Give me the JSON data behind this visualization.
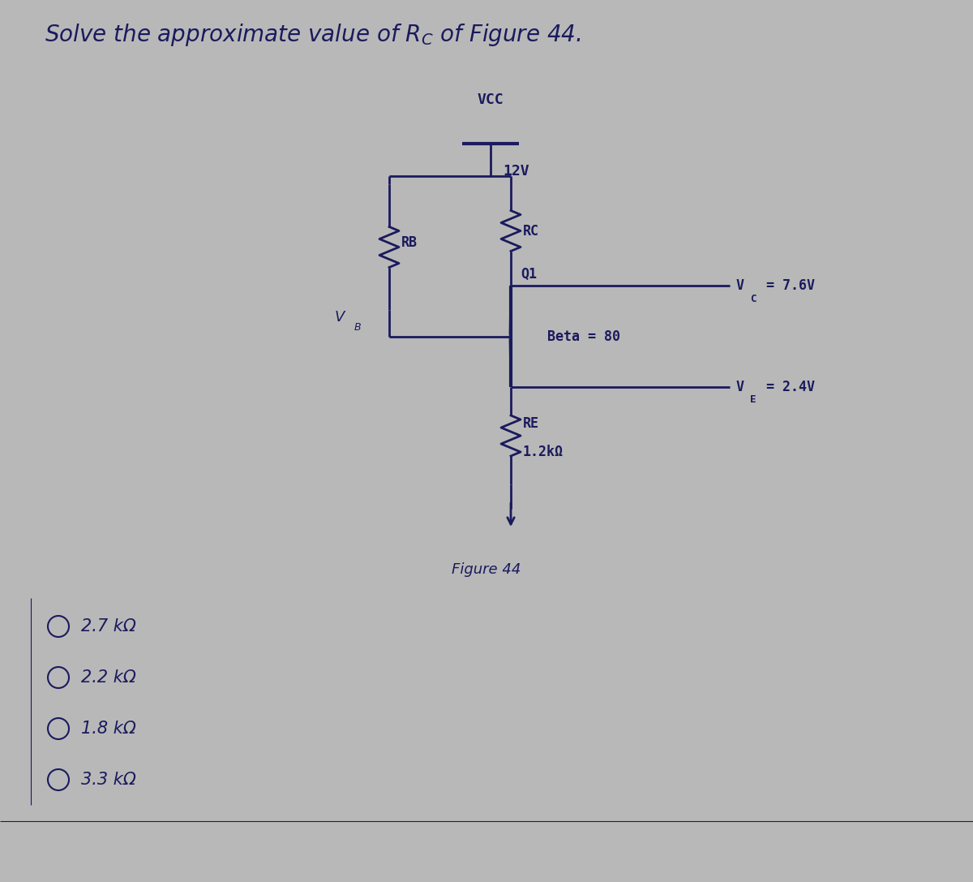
{
  "bg_color": "#b8b8b8",
  "line_color": "#1a1a5e",
  "text_color": "#1a1a5e",
  "title_text": "Solve the approximate value of R",
  "title_sub": "C",
  "title_rest": " of Figure 44.",
  "vcc_label": "VCC",
  "vcc_value": "12V",
  "rc_label": "RC",
  "rb_label": "RB",
  "q1_label": "Q1",
  "beta_label": "Beta = 80",
  "vc_label": "V",
  "vc_sub": "C",
  "vc_val": "= 7.6V",
  "ve_label": "V",
  "ve_sub": "E",
  "ve_val": "= 2.4V",
  "vb_label": "V",
  "vb_sub": "B",
  "re_label": "RE",
  "re_value": "1.2kΩ",
  "fig_label": "Figure 44",
  "choices": [
    "2.7 kΩ",
    "2.2 kΩ",
    "1.8 kΩ",
    "3.3 kΩ"
  ],
  "figsize": [
    12.0,
    10.87
  ]
}
